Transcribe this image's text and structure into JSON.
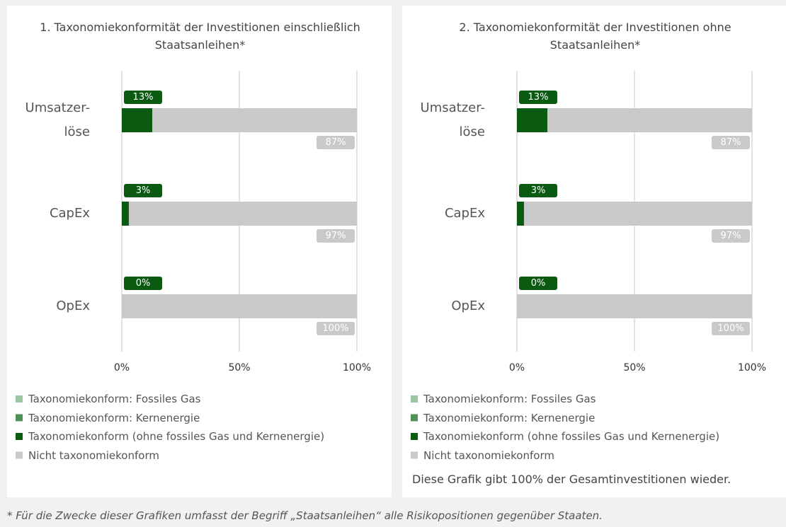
{
  "chart_data": [
    {
      "type": "bar",
      "orientation": "horizontal",
      "stacked": true,
      "title": "1. Taxonomiekonformität der Investitionen einschließlich Staatsanleihen*",
      "categories": [
        "Umsatzer-\nlöse",
        "CapEx",
        "OpEx"
      ],
      "series": [
        {
          "name": "Taxonomiekonform: Fossiles Gas",
          "color": "#9cc5a3",
          "values": [
            0,
            0,
            0
          ]
        },
        {
          "name": "Taxonomiekonform: Kernenergie",
          "color": "#4f9159",
          "values": [
            0,
            0,
            0
          ]
        },
        {
          "name": "Taxonomiekonform (ohne fossiles Gas und Kernenergie)",
          "color": "#0b5a12",
          "values": [
            13,
            3,
            0
          ],
          "value_labels": [
            "13%",
            "3%",
            "0%"
          ]
        },
        {
          "name": "Nicht taxonomiekonform",
          "color": "#c9c9c9",
          "values": [
            87,
            97,
            100
          ],
          "value_labels": [
            "87%",
            "97%",
            "100%"
          ]
        }
      ],
      "xlim": [
        0,
        100
      ],
      "xticks": [
        {
          "value": 0,
          "label": "0%"
        },
        {
          "value": 50,
          "label": "50%"
        },
        {
          "value": 100,
          "label": "100%"
        }
      ],
      "grid": true
    },
    {
      "type": "bar",
      "orientation": "horizontal",
      "stacked": true,
      "title": "2. Taxonomiekonformität der Investitionen ohne Staatsanleihen*",
      "categories": [
        "Umsatzer-\nlöse",
        "CapEx",
        "OpEx"
      ],
      "series": [
        {
          "name": "Taxonomiekonform: Fossiles Gas",
          "color": "#9cc5a3",
          "values": [
            0,
            0,
            0
          ]
        },
        {
          "name": "Taxonomiekonform: Kernenergie",
          "color": "#4f9159",
          "values": [
            0,
            0,
            0
          ]
        },
        {
          "name": "Taxonomiekonform (ohne fossiles Gas und Kernenergie)",
          "color": "#0b5a12",
          "values": [
            13,
            3,
            0
          ],
          "value_labels": [
            "13%",
            "3%",
            "0%"
          ]
        },
        {
          "name": "Nicht taxonomiekonform",
          "color": "#c9c9c9",
          "values": [
            87,
            97,
            100
          ],
          "value_labels": [
            "87%",
            "97%",
            "100%"
          ]
        }
      ],
      "xlim": [
        0,
        100
      ],
      "xticks": [
        {
          "value": 0,
          "label": "0%"
        },
        {
          "value": 50,
          "label": "50%"
        },
        {
          "value": 100,
          "label": "100%"
        }
      ],
      "grid": true,
      "note": "Diese Grafik gibt 100% der Gesamtinvestitionen wieder."
    }
  ],
  "footnote": "* Für die Zwecke dieser Grafiken umfasst der Begriff „Staatsanleihen“ alle Risikopositionen gegenüber Staaten."
}
